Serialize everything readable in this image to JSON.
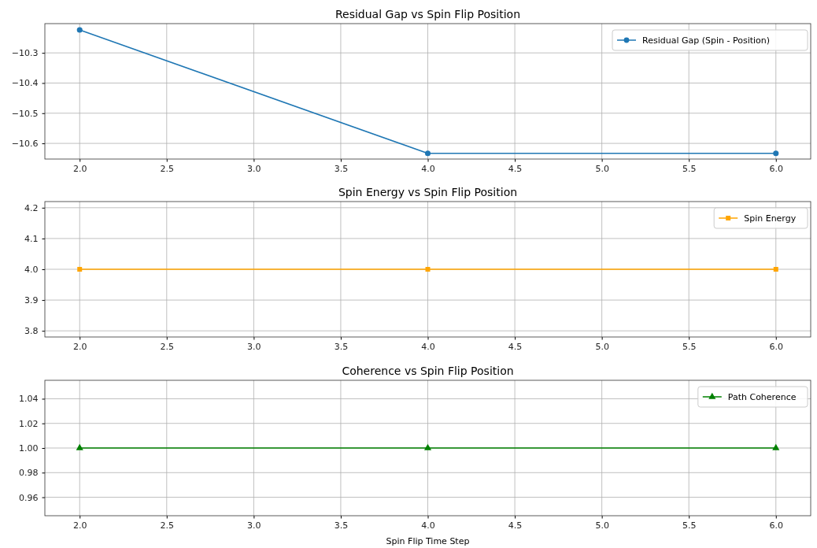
{
  "chart_data": [
    {
      "type": "line",
      "title": "Residual Gap vs Spin Flip Position",
      "x": [
        2,
        4,
        6
      ],
      "series": [
        {
          "name": "Residual Gap (Spin - Position)",
          "color": "#1f77b4",
          "values": [
            -10.224,
            -10.633,
            -10.633
          ],
          "marker": "circle"
        }
      ],
      "xlim": [
        1.8,
        6.2
      ],
      "xticks": [
        {
          "value": 2,
          "label": "2.0"
        },
        {
          "value": 2.5,
          "label": "2.5"
        },
        {
          "value": 3,
          "label": "3.0"
        },
        {
          "value": 3.5,
          "label": "3.5"
        },
        {
          "value": 4,
          "label": "4.0"
        },
        {
          "value": 4.5,
          "label": "4.5"
        },
        {
          "value": 5,
          "label": "5.0"
        },
        {
          "value": 5.5,
          "label": "5.5"
        },
        {
          "value": 6,
          "label": "6.0"
        }
      ],
      "ylim": [
        -10.652,
        -10.203
      ],
      "yticks": [
        {
          "value": -10.6,
          "label": "−10.6"
        },
        {
          "value": -10.5,
          "label": "−10.5"
        },
        {
          "value": -10.4,
          "label": "−10.4"
        },
        {
          "value": -10.3,
          "label": "−10.3"
        }
      ],
      "grid": true,
      "legend": "top right"
    },
    {
      "type": "line",
      "title": "Spin Energy vs Spin Flip Position",
      "x": [
        2,
        4,
        6
      ],
      "series": [
        {
          "name": "Spin Energy",
          "color": "#ffa500",
          "values": [
            4.0,
            4.0,
            4.0
          ],
          "marker": "square"
        }
      ],
      "xlim": [
        1.8,
        6.2
      ],
      "xticks": [
        {
          "value": 2,
          "label": "2.0"
        },
        {
          "value": 2.5,
          "label": "2.5"
        },
        {
          "value": 3,
          "label": "3.0"
        },
        {
          "value": 3.5,
          "label": "3.5"
        },
        {
          "value": 4,
          "label": "4.0"
        },
        {
          "value": 4.5,
          "label": "4.5"
        },
        {
          "value": 5,
          "label": "5.0"
        },
        {
          "value": 5.5,
          "label": "5.5"
        },
        {
          "value": 6,
          "label": "6.0"
        }
      ],
      "ylim": [
        3.78,
        4.22
      ],
      "yticks": [
        {
          "value": 3.8,
          "label": "3.8"
        },
        {
          "value": 3.9,
          "label": "3.9"
        },
        {
          "value": 4.0,
          "label": "4.0"
        },
        {
          "value": 4.1,
          "label": "4.1"
        },
        {
          "value": 4.2,
          "label": "4.2"
        }
      ],
      "grid": true,
      "legend": "top right"
    },
    {
      "type": "line",
      "title": "Coherence vs Spin Flip Position",
      "xlabel": "Spin Flip Time Step",
      "x": [
        2,
        4,
        6
      ],
      "series": [
        {
          "name": "Path Coherence",
          "color": "#008000",
          "values": [
            1.0,
            1.0,
            1.0
          ],
          "marker": "triangle"
        }
      ],
      "xlim": [
        1.8,
        6.2
      ],
      "xticks": [
        {
          "value": 2,
          "label": "2.0"
        },
        {
          "value": 2.5,
          "label": "2.5"
        },
        {
          "value": 3,
          "label": "3.0"
        },
        {
          "value": 3.5,
          "label": "3.5"
        },
        {
          "value": 4,
          "label": "4.0"
        },
        {
          "value": 4.5,
          "label": "4.5"
        },
        {
          "value": 5,
          "label": "5.0"
        },
        {
          "value": 5.5,
          "label": "5.5"
        },
        {
          "value": 6,
          "label": "6.0"
        }
      ],
      "ylim": [
        0.945,
        1.055
      ],
      "yticks": [
        {
          "value": 0.96,
          "label": "0.96"
        },
        {
          "value": 0.98,
          "label": "0.98"
        },
        {
          "value": 1.0,
          "label": "1.00"
        },
        {
          "value": 1.02,
          "label": "1.02"
        },
        {
          "value": 1.04,
          "label": "1.04"
        }
      ],
      "grid": true,
      "legend": "top right"
    }
  ]
}
